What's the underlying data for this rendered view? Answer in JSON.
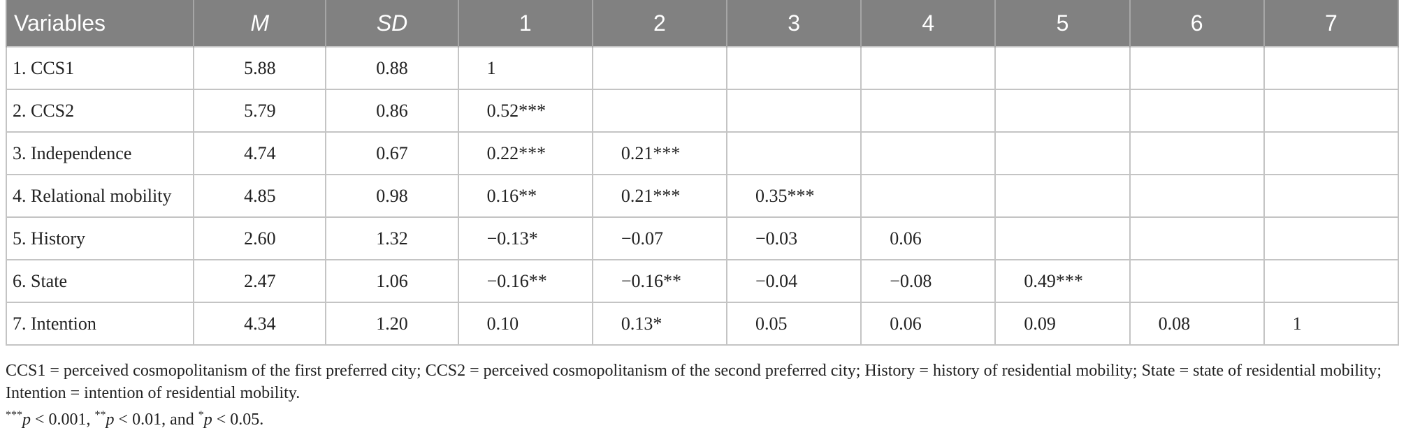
{
  "table": {
    "headers": [
      {
        "label": "Variables",
        "italic": false
      },
      {
        "label": "M",
        "italic": true
      },
      {
        "label": "SD",
        "italic": true
      },
      {
        "label": "1",
        "italic": false
      },
      {
        "label": "2",
        "italic": false
      },
      {
        "label": "3",
        "italic": false
      },
      {
        "label": "4",
        "italic": false
      },
      {
        "label": "5",
        "italic": false
      },
      {
        "label": "6",
        "italic": false
      },
      {
        "label": "7",
        "italic": false
      }
    ],
    "rows": [
      [
        "1. CCS1",
        "5.88",
        "0.88",
        "1",
        "",
        "",
        "",
        "",
        "",
        ""
      ],
      [
        "2. CCS2",
        "5.79",
        "0.86",
        "0.52***",
        "",
        "",
        "",
        "",
        "",
        ""
      ],
      [
        "3. Independence",
        "4.74",
        "0.67",
        "0.22***",
        "0.21***",
        "",
        "",
        "",
        "",
        ""
      ],
      [
        "4. Relational mobility",
        "4.85",
        "0.98",
        "0.16**",
        "0.21***",
        "0.35***",
        "",
        "",
        "",
        ""
      ],
      [
        "5. History",
        "2.60",
        "1.32",
        "−0.13*",
        "−0.07",
        "−0.03",
        "0.06",
        "",
        "",
        ""
      ],
      [
        "6. State",
        "2.47",
        "1.06",
        "−0.16**",
        "−0.16**",
        "−0.04",
        "−0.08",
        "0.49***",
        "",
        ""
      ],
      [
        "7. Intention",
        "4.34",
        "1.20",
        "0.10",
        "0.13*",
        "0.05",
        "0.06",
        "0.09",
        "0.08",
        "1"
      ]
    ]
  },
  "footnotes": {
    "definitions": "CCS1 = perceived cosmopolitanism of the first preferred city; CCS2 = perceived cosmopolitanism of the second preferred city; History = history of residential mobility; State = state of residential mobility; Intention = intention of residential mobility.",
    "significance": [
      {
        "stars": "***",
        "p": "p",
        "rest": " < 0.001, "
      },
      {
        "stars": "**",
        "p": "p",
        "rest": " < 0.01, and "
      },
      {
        "stars": "*",
        "p": "p",
        "rest": " < 0.05."
      }
    ]
  }
}
